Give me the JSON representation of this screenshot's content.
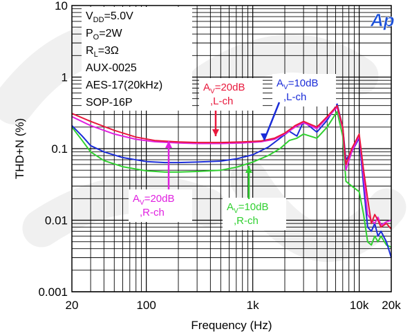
{
  "chart_data": {
    "type": "line",
    "title": "",
    "xlabel": "Frequency (Hz)",
    "ylabel": "THD+N (%)",
    "x_scale": "log",
    "y_scale": "log",
    "xlim": [
      20,
      20000
    ],
    "ylim": [
      0.001,
      10
    ],
    "grid": true,
    "x_ticks": [
      {
        "value": 20,
        "label": "20"
      },
      {
        "value": 100,
        "label": "100"
      },
      {
        "value": 1000,
        "label": "1k"
      },
      {
        "value": 10000,
        "label": "10k"
      },
      {
        "value": 20000,
        "label": "20k"
      }
    ],
    "y_ticks": [
      {
        "value": 10,
        "label": "10"
      },
      {
        "value": 1,
        "label": "1"
      },
      {
        "value": 0.1,
        "label": "0.1"
      },
      {
        "value": 0.01,
        "label": "0.01"
      },
      {
        "value": 0.001,
        "label": "0.001"
      }
    ],
    "conditions": [
      "V_DD=5.0V",
      "P_O=2W",
      "R_L=3Ω",
      "AUX-0025",
      "AES-17(20kHz)",
      "SOP-16P"
    ],
    "logo": "Ap",
    "series": [
      {
        "name": "Av=20dB ,L-ch",
        "color": "#e8183c",
        "x": [
          20,
          30,
          50,
          80,
          120,
          200,
          300,
          500,
          800,
          1200,
          1600,
          2000,
          2500,
          3000,
          4000,
          5000,
          6200,
          7000,
          7500,
          8500,
          10000,
          11000,
          12000,
          13000,
          14000,
          15000,
          16000,
          18000,
          20000
        ],
        "y": [
          0.31,
          0.24,
          0.18,
          0.145,
          0.13,
          0.124,
          0.122,
          0.122,
          0.124,
          0.128,
          0.14,
          0.165,
          0.21,
          0.24,
          0.2,
          0.28,
          0.4,
          0.2,
          0.06,
          0.1,
          0.16,
          0.05,
          0.02,
          0.009,
          0.012,
          0.01,
          0.008,
          0.009,
          0.0075
        ]
      },
      {
        "name": "Av=20dB ,R-ch",
        "color": "#e020e0",
        "x": [
          20,
          30,
          50,
          80,
          120,
          200,
          300,
          500,
          800,
          1200,
          1600,
          2000,
          2500,
          3000,
          4000,
          5000,
          6200,
          7000,
          7500,
          8500,
          10000,
          11000,
          12000,
          13000,
          14000,
          15000,
          16000,
          18000,
          20000
        ],
        "y": [
          0.28,
          0.21,
          0.16,
          0.135,
          0.125,
          0.12,
          0.118,
          0.118,
          0.12,
          0.125,
          0.135,
          0.16,
          0.2,
          0.23,
          0.19,
          0.27,
          0.38,
          0.19,
          0.05,
          0.09,
          0.15,
          0.04,
          0.012,
          0.01,
          0.009,
          0.011,
          0.0085,
          0.0095,
          0.01
        ]
      },
      {
        "name": "Av=10dB ,L-ch",
        "color": "#1a2cd8",
        "x": [
          20,
          25,
          30,
          40,
          60,
          100,
          150,
          200,
          300,
          500,
          700,
          1000,
          1400,
          1800,
          2200,
          2600,
          3000,
          4000,
          5000,
          6200,
          7000,
          7500,
          8500,
          10000,
          11000,
          12000,
          13000,
          14000,
          15000,
          16000,
          18000,
          20000
        ],
        "y": [
          0.21,
          0.15,
          0.11,
          0.09,
          0.075,
          0.066,
          0.064,
          0.064,
          0.065,
          0.067,
          0.072,
          0.082,
          0.105,
          0.14,
          0.175,
          0.15,
          0.24,
          0.17,
          0.25,
          0.42,
          0.2,
          0.07,
          0.09,
          0.14,
          0.03,
          0.008,
          0.007,
          0.009,
          0.006,
          0.007,
          0.005,
          0.003
        ]
      },
      {
        "name": "Av=10dB ,R-ch",
        "color": "#30d030",
        "x": [
          20,
          25,
          30,
          40,
          60,
          100,
          150,
          200,
          300,
          500,
          700,
          1000,
          1400,
          1800,
          2200,
          2600,
          3000,
          4000,
          5000,
          6200,
          7000,
          7500,
          8500,
          10000,
          11000,
          12000,
          13000,
          14000,
          15000,
          16000,
          18000,
          20000
        ],
        "y": [
          0.2,
          0.13,
          0.09,
          0.068,
          0.056,
          0.049,
          0.047,
          0.047,
          0.048,
          0.05,
          0.055,
          0.065,
          0.08,
          0.1,
          0.13,
          0.14,
          0.16,
          0.14,
          0.2,
          0.33,
          0.15,
          0.035,
          0.03,
          0.025,
          0.012,
          0.005,
          0.0045,
          0.006,
          0.005,
          0.006,
          0.0045,
          0.0042
        ]
      }
    ],
    "annotations": [
      {
        "series": 0,
        "line1": "A_V=20dB",
        "line2": ",L-ch",
        "color": "#e8183c"
      },
      {
        "series": 2,
        "line1": "A_V=10dB",
        "line2": ",L-ch",
        "color": "#1a2cd8"
      },
      {
        "series": 1,
        "line1": "A_V=20dB",
        "line2": ",R-ch",
        "color": "#e020e0"
      },
      {
        "series": 3,
        "line1": "A_V=10dB",
        "line2": ",R-ch",
        "color": "#30d030"
      }
    ]
  }
}
